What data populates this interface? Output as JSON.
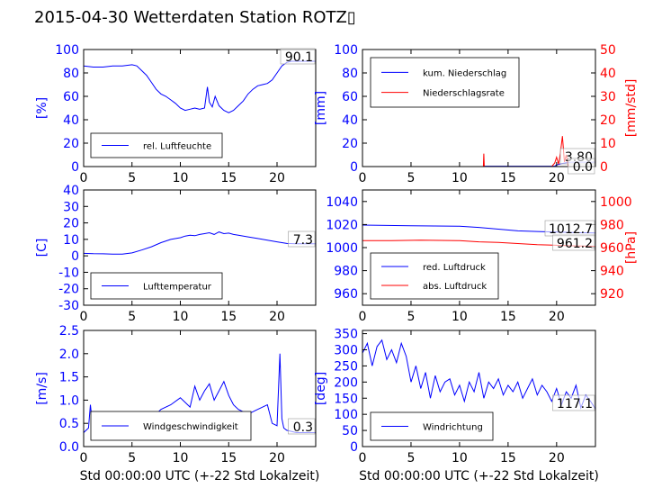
{
  "title": "2015-04-30 Wetterdaten Station ROTZ▯",
  "xlabel": "Std 00:00:00 UTC (+-22 Std Lokalzeit)",
  "colors": {
    "primary": "#0000ff",
    "secondary": "#ff0000",
    "axis": "#000000"
  },
  "chart_data": [
    {
      "type": "line",
      "ylabel": "[%]",
      "xlim": [
        0,
        24
      ],
      "ylim": [
        0,
        100
      ],
      "xticks": [
        0,
        5,
        10,
        15,
        20
      ],
      "yticks": [
        0,
        20,
        40,
        60,
        80,
        100
      ],
      "legend": {
        "placement": "lower-left",
        "entries": [
          "rel. Luftfeuchte"
        ]
      },
      "current_value": "90.1",
      "series": [
        {
          "name": "rel. Luftfeuchte",
          "color": "#0000ff",
          "x": [
            0,
            1,
            2,
            3,
            4,
            5,
            5.5,
            6,
            6.5,
            7,
            7.5,
            8,
            8.5,
            9,
            9.5,
            10,
            10.5,
            11,
            11.5,
            12,
            12.5,
            12.8,
            13,
            13.3,
            13.6,
            14,
            14.5,
            15,
            15.5,
            16,
            16.5,
            17,
            17.5,
            18,
            18.5,
            19,
            19.5,
            20,
            20.5,
            21,
            21.5,
            22,
            23,
            24
          ],
          "y": [
            86,
            85,
            85,
            86,
            86,
            87,
            86,
            82,
            78,
            72,
            66,
            62,
            60,
            57,
            54,
            50,
            48,
            49,
            50,
            49,
            50,
            68,
            55,
            51,
            60,
            52,
            48,
            46,
            48,
            52,
            56,
            62,
            66,
            69,
            70,
            71,
            74,
            80,
            86,
            89,
            90,
            90,
            90,
            90
          ]
        }
      ]
    },
    {
      "type": "line",
      "ylabel": "[mm]",
      "ylabel2": "[mm/std]",
      "xlim": [
        0,
        24
      ],
      "ylim": [
        0,
        100
      ],
      "ylim2": [
        0,
        50
      ],
      "xticks": [
        0,
        5,
        10,
        15,
        20
      ],
      "yticks": [
        0,
        20,
        40,
        60,
        80,
        100
      ],
      "yticks2": [
        0,
        10,
        20,
        30,
        40,
        50
      ],
      "legend": {
        "placement": "upper-left",
        "entries": [
          "kum. Niederschlag",
          "Niederschlagsrate"
        ]
      },
      "current_values": [
        "3.80",
        "0.0"
      ],
      "series": [
        {
          "name": "kum. Niederschlag",
          "color": "#0000ff",
          "axis": "left",
          "x": [
            0,
            12.5,
            12.6,
            19.8,
            20,
            20.5,
            21,
            21.5,
            24
          ],
          "y": [
            0,
            0,
            0.3,
            0.3,
            1.5,
            2.5,
            3.2,
            3.8,
            3.8
          ]
        },
        {
          "name": "Niederschlagsrate",
          "color": "#ff0000",
          "axis": "right",
          "x": [
            0,
            12.45,
            12.5,
            12.55,
            12.6,
            19.5,
            19.8,
            20,
            20.2,
            20.4,
            20.6,
            20.8,
            21,
            21.2,
            21.5,
            24
          ],
          "y": [
            0,
            0,
            5.5,
            0,
            0,
            0,
            1.5,
            4,
            1,
            6,
            13,
            2,
            5,
            0,
            0,
            0
          ]
        }
      ]
    },
    {
      "type": "line",
      "ylabel": "[C]",
      "xlim": [
        0,
        24
      ],
      "ylim": [
        -30,
        40
      ],
      "xticks": [
        0,
        5,
        10,
        15,
        20
      ],
      "yticks": [
        -30,
        -20,
        -10,
        0,
        10,
        20,
        30,
        40
      ],
      "legend": {
        "placement": "lower-left",
        "entries": [
          "Lufttemperatur"
        ]
      },
      "current_value": "7.3",
      "series": [
        {
          "name": "Lufttemperatur",
          "color": "#0000ff",
          "x": [
            0,
            1,
            2,
            3,
            4,
            5,
            6,
            7,
            8,
            9,
            10,
            10.5,
            11,
            11.5,
            12,
            12.5,
            13,
            13.5,
            14,
            14.5,
            15,
            15.5,
            16,
            17,
            18,
            19,
            20,
            21,
            22,
            23,
            24
          ],
          "y": [
            1.5,
            1.3,
            1.2,
            1.0,
            1.0,
            1.8,
            3.5,
            5.5,
            8,
            10,
            11,
            12,
            12.5,
            12.2,
            13,
            13.5,
            14,
            13,
            14.5,
            13.5,
            13.8,
            13,
            12.5,
            11.5,
            10.5,
            9.5,
            8.5,
            7.5,
            7.3,
            7.3,
            7.3
          ]
        }
      ]
    },
    {
      "type": "line",
      "ylabel2": "[hPa]",
      "xlim": [
        0,
        24
      ],
      "ylim": [
        950,
        1050
      ],
      "ylim2": [
        910,
        1010
      ],
      "xticks": [
        0,
        5,
        10,
        15,
        20
      ],
      "yticks": [
        960,
        980,
        1000,
        1020,
        1040
      ],
      "yticks2": [
        920,
        940,
        960,
        980,
        1000
      ],
      "legend": {
        "placement": "lower-left",
        "entries": [
          "red. Luftdruck",
          "abs. Luftdruck"
        ]
      },
      "current_values": [
        "1012.7",
        "961.2"
      ],
      "series": [
        {
          "name": "red. Luftdruck",
          "color": "#0000ff",
          "axis": "left",
          "x": [
            0,
            5,
            10,
            12,
            14,
            16,
            18,
            20,
            22,
            24
          ],
          "y": [
            1019.5,
            1019,
            1018.5,
            1017.5,
            1016,
            1014.5,
            1014,
            1013.5,
            1013,
            1012.7
          ]
        },
        {
          "name": "abs. Luftdruck",
          "color": "#ff0000",
          "axis": "right",
          "x": [
            0,
            3,
            6,
            10,
            12,
            14,
            16,
            18,
            20,
            22,
            24
          ],
          "y": [
            966,
            966,
            966.5,
            966,
            965,
            964.5,
            963.5,
            962.5,
            962,
            961.5,
            961.2
          ]
        }
      ]
    },
    {
      "type": "line",
      "ylabel": "[m/s]",
      "xlim": [
        0,
        24
      ],
      "ylim": [
        0,
        2.5
      ],
      "xticks": [
        0,
        5,
        10,
        15,
        20
      ],
      "yticks": [
        0.0,
        0.5,
        1.0,
        1.5,
        2.0,
        2.5
      ],
      "legend": {
        "placement": "lower-left",
        "entries": [
          "Windgeschwindigkeit"
        ]
      },
      "current_value": "0.3",
      "series": [
        {
          "name": "Windgeschwindigkeit",
          "color": "#0000ff",
          "x": [
            0,
            0.5,
            0.7,
            1,
            2,
            3,
            4,
            5,
            6,
            7,
            7.5,
            8,
            9,
            10,
            11,
            11.5,
            12,
            12.5,
            13,
            13.5,
            14,
            14.5,
            15,
            15.5,
            16,
            17,
            18,
            19,
            19.5,
            20,
            20.3,
            20.5,
            20.7,
            21,
            22,
            23,
            24
          ],
          "y": [
            0.3,
            0.4,
            0.9,
            0.3,
            0.3,
            0.2,
            0.25,
            0.2,
            0.3,
            0.35,
            0.7,
            0.8,
            0.9,
            1.05,
            0.85,
            1.3,
            1.0,
            1.2,
            1.35,
            1.0,
            1.2,
            1.4,
            1.1,
            0.9,
            0.8,
            0.7,
            0.8,
            0.9,
            0.5,
            0.45,
            2.0,
            0.6,
            0.4,
            0.35,
            0.3,
            0.3,
            0.3
          ]
        }
      ]
    },
    {
      "type": "line",
      "ylabel": "[deg]",
      "xlim": [
        0,
        24
      ],
      "ylim": [
        0,
        360
      ],
      "xticks": [
        0,
        5,
        10,
        15,
        20
      ],
      "yticks": [
        0,
        50,
        100,
        150,
        200,
        250,
        300,
        350
      ],
      "legend": {
        "placement": "lower-left",
        "entries": [
          "Windrichtung"
        ]
      },
      "current_value": "117.1",
      "series": [
        {
          "name": "Windrichtung",
          "color": "#0000ff",
          "x": [
            0,
            0.5,
            1,
            1.5,
            2,
            2.5,
            3,
            3.5,
            4,
            4.5,
            5,
            5.5,
            6,
            6.5,
            7,
            7.5,
            8,
            8.5,
            9,
            9.5,
            10,
            10.5,
            11,
            11.5,
            12,
            12.5,
            13,
            13.5,
            14,
            14.5,
            15,
            15.5,
            16,
            16.5,
            17,
            17.5,
            18,
            18.5,
            19,
            19.5,
            20,
            20.5,
            21,
            21.5,
            22,
            22.5,
            23,
            23.5,
            24
          ],
          "y": [
            290,
            320,
            250,
            310,
            330,
            270,
            300,
            260,
            320,
            280,
            200,
            250,
            180,
            230,
            150,
            220,
            170,
            200,
            210,
            160,
            190,
            140,
            200,
            170,
            230,
            150,
            200,
            180,
            210,
            160,
            190,
            170,
            200,
            150,
            180,
            210,
            160,
            190,
            170,
            140,
            180,
            130,
            170,
            150,
            190,
            120,
            160,
            140,
            117
          ]
        }
      ]
    }
  ]
}
